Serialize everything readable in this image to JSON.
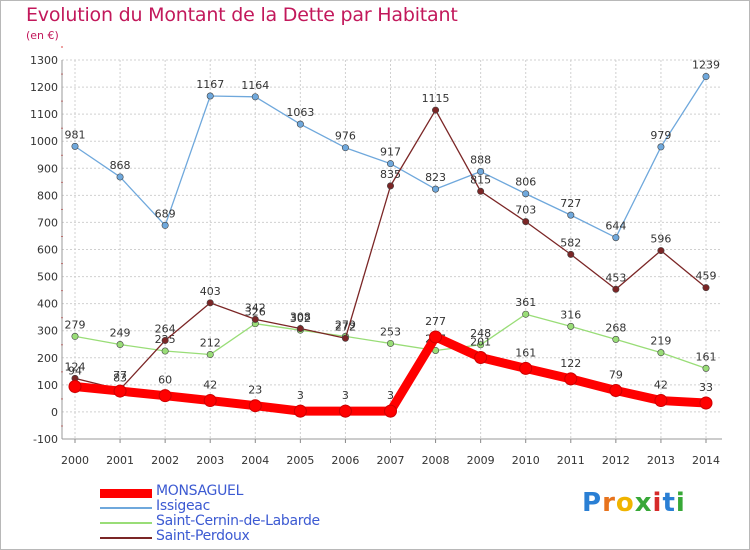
{
  "title": "Evolution du Montant de la Dette par Habitant",
  "subtitle": "(en €)",
  "logo_text": "Proxiti",
  "chart_data": {
    "type": "line",
    "title": "Evolution du Montant de la Dette par Habitant",
    "subtitle": "(en €)",
    "xlabel": "",
    "ylabel": "",
    "x": [
      "2000",
      "2001",
      "2002",
      "2003",
      "2004",
      "2005",
      "2006",
      "2007",
      "2008",
      "2009",
      "2010",
      "2011",
      "2012",
      "2013",
      "2014"
    ],
    "ylim": [
      -100,
      1300
    ],
    "yticks": [
      "-100",
      "0",
      "100",
      "200",
      "300",
      "400",
      "500",
      "600",
      "700",
      "800",
      "900",
      "1000",
      "1100",
      "1200",
      "1300"
    ],
    "grid": true,
    "legend_position": "bottom-left",
    "series": [
      {
        "name": "MONSAGUEL",
        "color": "#ff0000",
        "values": [
          94,
          77,
          60,
          42,
          23,
          3,
          3,
          3,
          277,
          201,
          161,
          122,
          79,
          42,
          33
        ]
      },
      {
        "name": "Issigeac",
        "color": "#6fa8dc",
        "values": [
          981,
          868,
          689,
          1167,
          1164,
          1063,
          976,
          917,
          823,
          888,
          806,
          727,
          644,
          979,
          1239
        ]
      },
      {
        "name": "Saint-Cernin-de-Labarde",
        "color": "#99dd77",
        "values": [
          279,
          249,
          225,
          212,
          326,
          302,
          279,
          253,
          227,
          248,
          361,
          316,
          268,
          219,
          161
        ]
      },
      {
        "name": "Saint-Perdoux",
        "color": "#7b2626",
        "values": [
          124,
          83,
          264,
          403,
          342,
          308,
          272,
          835,
          1115,
          815,
          703,
          582,
          453,
          596,
          459
        ]
      }
    ]
  }
}
